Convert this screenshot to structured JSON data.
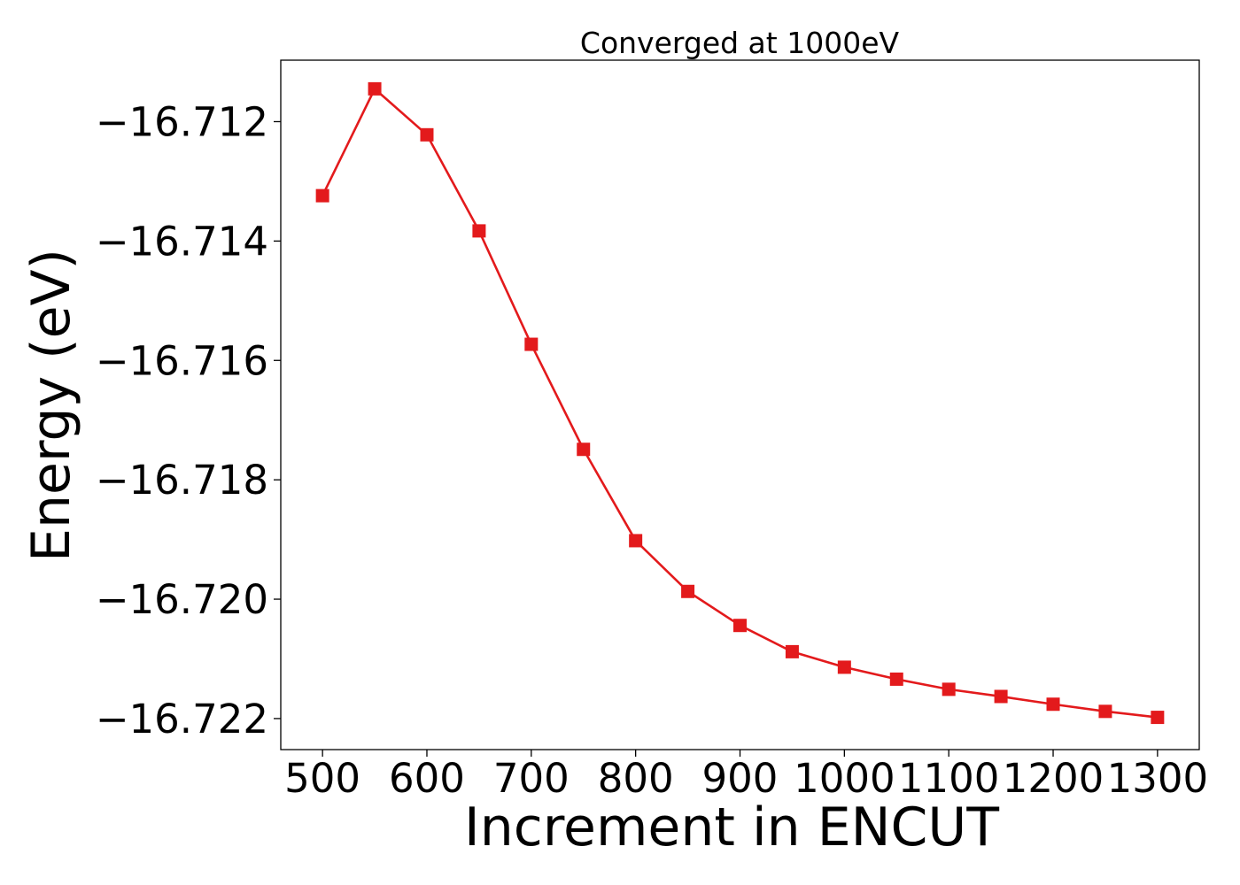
{
  "chart_data": {
    "type": "line",
    "title": "Converged at 1000eV",
    "xlabel": "Increment in ENCUT",
    "ylabel": "Energy (eV)",
    "x": [
      500,
      550,
      600,
      650,
      700,
      750,
      800,
      850,
      900,
      950,
      1000,
      1050,
      1100,
      1150,
      1200,
      1250,
      1300
    ],
    "series": [
      {
        "values": [
          -16.71324,
          -16.71145,
          -16.71222,
          -16.71383,
          -16.71573,
          -16.71749,
          -16.71902,
          -16.71987,
          -16.72044,
          -16.72088,
          -16.72114,
          -16.72134,
          -16.72151,
          -16.72163,
          -16.72176,
          -16.72188,
          -16.72198
        ],
        "color": "#e31a1c",
        "marker": "square"
      }
    ],
    "xlim": [
      460,
      1340
    ],
    "ylim": [
      -16.72252,
      -16.71097
    ],
    "xticks": [
      {
        "value": 500,
        "label": "500"
      },
      {
        "value": 600,
        "label": "600"
      },
      {
        "value": 700,
        "label": "700"
      },
      {
        "value": 800,
        "label": "800"
      },
      {
        "value": 900,
        "label": "900"
      },
      {
        "value": 1000,
        "label": "1000"
      },
      {
        "value": 1100,
        "label": "1100"
      },
      {
        "value": 1200,
        "label": "1200"
      },
      {
        "value": 1300,
        "label": "1300"
      }
    ],
    "yticks": [
      {
        "value": -16.712,
        "label": "−16.712"
      },
      {
        "value": -16.714,
        "label": "−16.714"
      },
      {
        "value": -16.716,
        "label": "−16.716"
      },
      {
        "value": -16.718,
        "label": "−16.718"
      },
      {
        "value": -16.72,
        "label": "−16.720"
      },
      {
        "value": -16.722,
        "label": "−16.722"
      }
    ],
    "grid": false,
    "legend": "none"
  }
}
